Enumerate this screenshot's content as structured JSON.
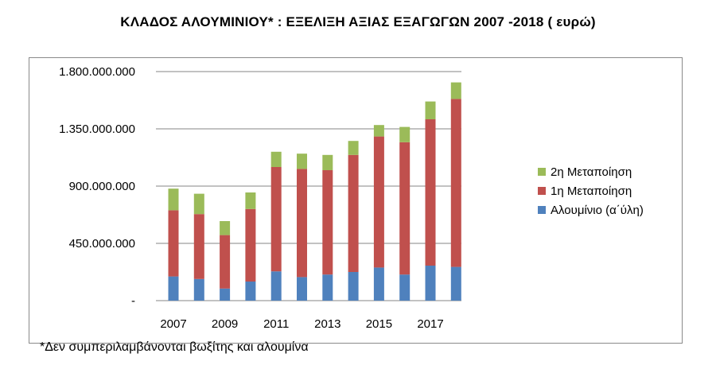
{
  "title": "ΚΛΑΔΟΣ  ΑΛΟΥΜΙΝΙΟΥ* : ΕΞΕΛΙΞΗ  ΑΞΙΑΣ  ΕΞΑΓΩΓΩΝ 2007 -2018 ( ευρώ)",
  "footnote": "*Δεν συμπεριλαμβάνονται βωξίτης και αλουμίνα",
  "chart_data": {
    "type": "bar",
    "stacked": true,
    "title": "ΚΛΑΔΟΣ  ΑΛΟΥΜΙΝΙΟΥ* : ΕΞΕΛΙΞΗ  ΑΞΙΑΣ  ΕΞΑΓΩΓΩΝ 2007 -2018 ( ευρώ)",
    "categories": [
      "2007",
      "2008",
      "2009",
      "2010",
      "2011",
      "2012",
      "2013",
      "2014",
      "2015",
      "2016",
      "2017",
      "2018"
    ],
    "x_tick_labels": [
      "2007",
      "",
      "2009",
      "",
      "2011",
      "",
      "2013",
      "",
      "2015",
      "",
      "2017",
      ""
    ],
    "series": [
      {
        "name": "Αλουμίνιο (α΄ύλη)",
        "color": "#4f81bd",
        "values": [
          190000000,
          170000000,
          95000000,
          150000000,
          230000000,
          185000000,
          205000000,
          225000000,
          260000000,
          205000000,
          275000000,
          265000000
        ]
      },
      {
        "name": "1η Μεταποίηση",
        "color": "#c0504d",
        "values": [
          520000000,
          510000000,
          420000000,
          570000000,
          820000000,
          850000000,
          820000000,
          920000000,
          1030000000,
          1040000000,
          1150000000,
          1320000000
        ]
      },
      {
        "name": "2η Μεταποίηση",
        "color": "#9bbb59",
        "values": [
          170000000,
          160000000,
          110000000,
          130000000,
          120000000,
          120000000,
          120000000,
          110000000,
          90000000,
          120000000,
          140000000,
          130000000
        ]
      }
    ],
    "y_ticks": [
      {
        "value": 0,
        "label": "-"
      },
      {
        "value": 450000000,
        "label": "450.000.000"
      },
      {
        "value": 900000000,
        "label": "900.000.000"
      },
      {
        "value": 1350000000,
        "label": "1.350.000.000"
      },
      {
        "value": 1800000000,
        "label": "1.800.000.000"
      }
    ],
    "ylim": [
      0,
      1800000000
    ],
    "grid": true,
    "legend_position": "right",
    "legend_order": [
      "2η Μεταποίηση",
      "1η Μεταποίηση",
      "Αλουμίνιο (α΄ύλη)"
    ]
  }
}
